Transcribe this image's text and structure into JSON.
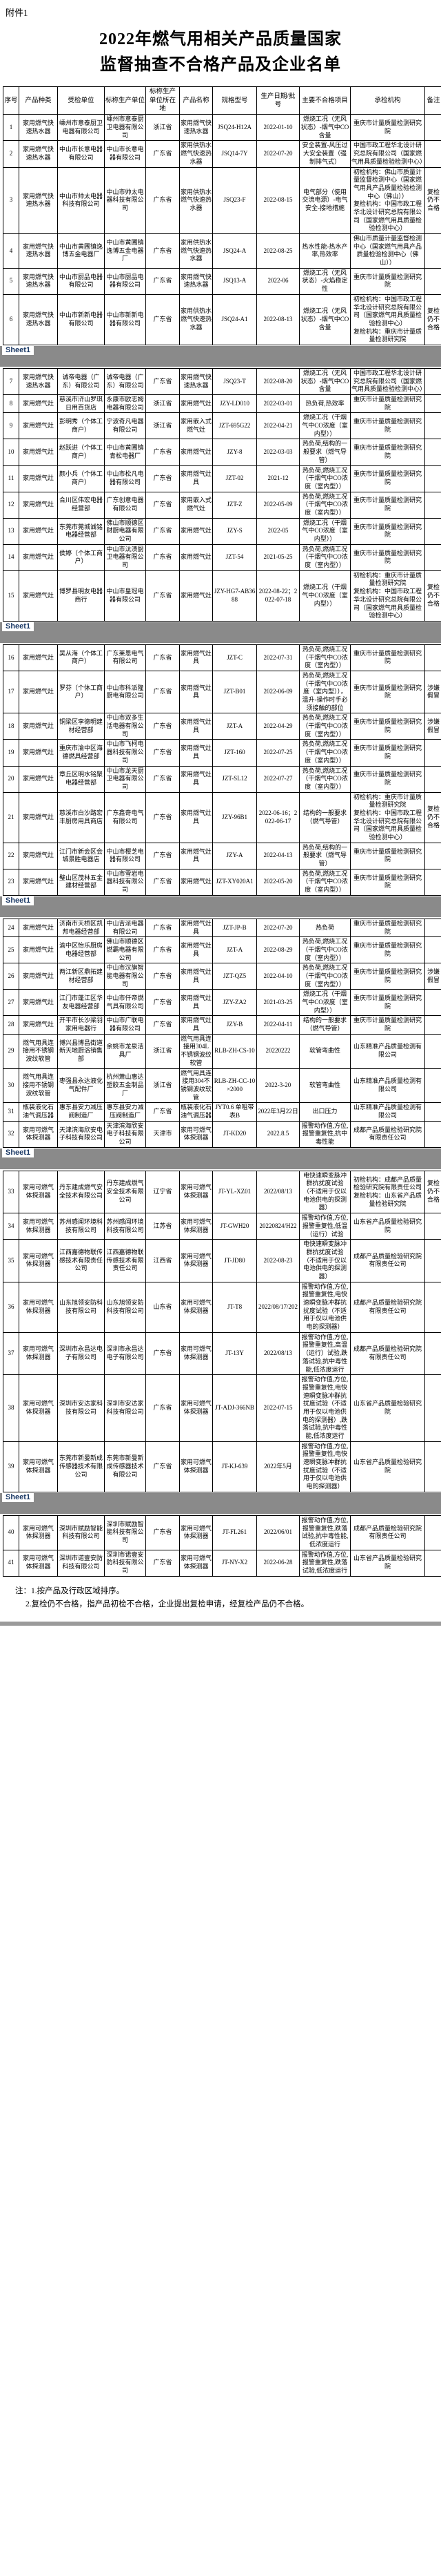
{
  "doc": {
    "attachment": "附件1",
    "title_line1": "2022年燃气用相关产品质量国家",
    "title_line2": "监督抽查不合格产品及企业名单",
    "sheet_tab": "Sheet1",
    "note1": "注：1.按产品及行政区域排序。",
    "note2": "2.复检仍不合格，指产品初检不合格，企业提出复检申请，经复检产品仍不合格。"
  },
  "table": {
    "columns": [
      "序号",
      "产品种类",
      "受检单位",
      "标称生产单位",
      "标称生产单位所在地",
      "产品名称",
      "规格型号",
      "生产日期/批号",
      "主要不合格项目",
      "承检机构",
      "备注"
    ],
    "sheet_breaks_after": [
      6,
      15,
      23,
      32,
      39
    ],
    "rows": [
      {
        "no": "1",
        "category": "家用燃气快速热水器",
        "inspected_unit": "嵊州市意泰厨卫电器有限公司",
        "producer": "嵊州市意泰厨卫电器有限公司",
        "region": "浙江省",
        "product_name": "家用燃气快速热水器",
        "model": "JSQ24-H12A",
        "batch": "2022-01-10",
        "defects": "燃烧工况（无风状态）-烟气中CO含量",
        "agency": "重庆市计量质量检测研究院",
        "remark": ""
      },
      {
        "no": "2",
        "category": "家用燃气快速热水器",
        "inspected_unit": "中山市长意电器有限公司",
        "producer": "中山市长意电器有限公司",
        "region": "广东省",
        "product_name": "家用供热水燃气快速热水器",
        "model": "JSQ14-7Y",
        "batch": "2022-07-20",
        "defects": "安全装置-风压过大安全装置（强制排气式）",
        "agency": "中国市政工程华北设计研究总院有限公司（国家燃气用具质量检验检测中心）",
        "remark": ""
      },
      {
        "no": "3",
        "category": "家用燃气快速热水器",
        "inspected_unit": "中山市帅太电器科技有限公司",
        "producer": "中山市帅太电器科技有限公司",
        "region": "广东省",
        "product_name": "家用供热水燃气快速热水器",
        "model": "JSQ23-F",
        "batch": "2022-08-15",
        "defects": "电气部分（使用交流电源）-电气安全-接地措施",
        "agency": "初检机构：佛山市质量计量监督检测中心（国家燃气用具产品质量检验检测中心（佛山））\n复检机构：中国市政工程华北设计研究总院有限公司（国家燃气用具质量检验检测中心）",
        "remark": "复检仍不合格"
      },
      {
        "no": "4",
        "category": "家用燃气快速热水器",
        "inspected_unit": "中山市黄圃镇逸博五金电器厂",
        "producer": "中山市黄圃镇逸博五金电器厂",
        "region": "广东省",
        "product_name": "家用供热水燃气快速热水器",
        "model": "JSQ24-A",
        "batch": "2022-08-25",
        "defects": "热水性能-热水产率,热效率",
        "agency": "佛山市质量计量监督检测中心（国家燃气用具产品质量检验检测中心（佛山））",
        "remark": ""
      },
      {
        "no": "5",
        "category": "家用燃气快速热水器",
        "inspected_unit": "中山市厨品电器有限公司",
        "producer": "中山市厨品电器有限公司",
        "region": "广东省",
        "product_name": "家用燃气快速热水器",
        "model": "JSQ13-A",
        "batch": "2022-06",
        "defects": "燃烧工况（无风状态）-火焰稳定性",
        "agency": "重庆市计量质量检测研究院",
        "remark": ""
      },
      {
        "no": "6",
        "category": "家用燃气快速热水器",
        "inspected_unit": "中山市新新电器有限公司",
        "producer": "中山市新新电器有限公司",
        "region": "广东省",
        "product_name": "家用供热水燃气快速热水器",
        "model": "JSQ24-A1",
        "batch": "2022-08-13",
        "defects": "燃烧工况（无风状态）-烟气中CO含量",
        "agency": "初检机构：中国市政工程华北设计研究总院有限公司（国家燃气用具质量检验检测中心）\n复检机构：重庆市计量质量检测研究院",
        "remark": "复检仍不合格"
      },
      {
        "no": "7",
        "category": "家用燃气快速热水器",
        "inspected_unit": "诚帝电器（广东）有限公司",
        "producer": "诚帝电器（广东）有限公司",
        "region": "广东省",
        "product_name": "家用燃气快速热水器",
        "model": "JSQ23-T",
        "batch": "2022-08-20",
        "defects": "燃烧工况（无风状态）-烟气中CO含量",
        "agency": "中国市政工程华北设计研究总院有限公司（国家燃气用具质量检验检测中心）",
        "remark": ""
      },
      {
        "no": "8",
        "category": "家用燃气灶",
        "inspected_unit": "慈溪市浒山罗琪日用百货店",
        "producer": "永康市欧志姆电器有限公司",
        "region": "浙江省",
        "product_name": "家用燃气灶",
        "model": "JZY-LD010",
        "batch": "2022-03-01",
        "defects": "热负荷,热效率",
        "agency": "重庆市计量质量检测研究院",
        "remark": ""
      },
      {
        "no": "9",
        "category": "家用燃气灶",
        "inspected_unit": "彭明秀（个体工商户）",
        "producer": "宁波奇凡电器有限公司",
        "region": "浙江省",
        "product_name": "家用嵌入式燃气灶",
        "model": "JZT-695G22",
        "batch": "2022-04-21",
        "defects": "燃烧工况（干烟气中CO浓度（室内型））",
        "agency": "重庆市计量质量检测研究院",
        "remark": ""
      },
      {
        "no": "10",
        "category": "家用燃气灶",
        "inspected_unit": "赵跃进（个体工商户）",
        "producer": "中山市黄圃镇青松电器厂",
        "region": "广东省",
        "product_name": "家用燃气灶",
        "model": "JZY-8",
        "batch": "2022-03-03",
        "defects": "热负荷,结构的一般要求（燃气导管）",
        "agency": "重庆市计量质量检测研究院",
        "remark": ""
      },
      {
        "no": "11",
        "category": "家用燃气灶",
        "inspected_unit": "颜小兵（个体工商户）",
        "producer": "中山市松凡电器有限公司",
        "region": "广东省",
        "product_name": "家用燃气灶具",
        "model": "JZT-02",
        "batch": "2021-12",
        "defects": "热负荷,燃烧工况（干烟气中CO浓度（室内型））",
        "agency": "重庆市计量质量检测研究院",
        "remark": ""
      },
      {
        "no": "12",
        "category": "家用燃气灶",
        "inspected_unit": "合川区伟宏电器经营部",
        "producer": "广东创意电器有限公司",
        "region": "广东省",
        "product_name": "家用嵌入式燃气灶",
        "model": "JZT-Z",
        "batch": "2022-05-09",
        "defects": "热负荷,燃烧工况（干烟气中CO浓度（室内型））",
        "agency": "重庆市计量质量检测研究院",
        "remark": ""
      },
      {
        "no": "13",
        "category": "家用燃气灶",
        "inspected_unit": "东莞市莞城诚铭电器经营部",
        "producer": "佛山市顺德区财厨电器有限公司",
        "region": "广东省",
        "product_name": "家用燃气灶",
        "model": "JZY-S",
        "batch": "2022-05",
        "defects": "燃烧工况（干烟气中CO浓度（室内型））",
        "agency": "重庆市计量质量检测研究院",
        "remark": ""
      },
      {
        "no": "14",
        "category": "家用燃气灶",
        "inspected_unit": "侯婷（个体工商户）",
        "producer": "中山市汰渍厨卫电器有限公司",
        "region": "广东省",
        "product_name": "家用燃气灶",
        "model": "JZT-54",
        "batch": "2021-05-25",
        "defects": "热负荷,燃烧工况（干烟气中CO浓度（室内型））",
        "agency": "重庆市计量质量检测研究院",
        "remark": ""
      },
      {
        "no": "15",
        "category": "家用燃气灶",
        "inspected_unit": "博罗县明友电器商行",
        "producer": "中山市皇冠电器有限公司",
        "region": "广东省",
        "product_name": "家用燃气灶",
        "model": "JZY-HG7-AB3688",
        "batch": "2022-08-22；2022-07-18",
        "defects": "燃烧工况（干烟气中CO浓度（室内型））",
        "agency": "初检机构：重庆市计量质量检测研究院\n复检机构：中国市政工程华北设计研究总院有限公司（国家燃气用具质量检验检测中心）",
        "remark": "复检仍不合格"
      },
      {
        "no": "16",
        "category": "家用燃气灶",
        "inspected_unit": "吴从海（个体工商户）",
        "producer": "广东莱恩电气有限公司",
        "region": "广东省",
        "product_name": "家用燃气灶具",
        "model": "JZT-C",
        "batch": "2022-07-31",
        "defects": "热负荷,燃烧工况（干烟气中CO浓度（室内型））",
        "agency": "重庆市计量质量检测研究院",
        "remark": ""
      },
      {
        "no": "17",
        "category": "家用燃气灶",
        "inspected_unit": "罗芬（个体工商户）",
        "producer": "中山市科派隆厨电有限公司",
        "region": "广东省",
        "product_name": "家用燃气灶具",
        "model": "JZT-B01",
        "batch": "2022-06-09",
        "defects": "热负荷,燃烧工况（干烟气中CO浓度（室内型）），温升-操作时手必须接触的部位",
        "agency": "重庆市计量质量检测研究院",
        "remark": "涉嫌假冒"
      },
      {
        "no": "18",
        "category": "家用燃气灶",
        "inspected_unit": "铜梁区李德明建材经营部",
        "producer": "中山市双多生活电器有限公司",
        "region": "广东省",
        "product_name": "家用燃气灶具",
        "model": "JZT-A",
        "batch": "2022-04-29",
        "defects": "热负荷,燃烧工况（干烟气中CO浓度（室内型））",
        "agency": "重庆市计量质量检测研究院",
        "remark": "涉嫌假冒"
      },
      {
        "no": "19",
        "category": "家用燃气灶",
        "inspected_unit": "重庆市渝中区海德燃具经营部",
        "producer": "中山市飞柯电器科技有限公司",
        "region": "广东省",
        "product_name": "家用燃气灶具",
        "model": "JZT-160",
        "batch": "2022-07-25",
        "defects": "热负荷,燃烧工况（干烟气中CO浓度（室内型））",
        "agency": "重庆市计量质量检测研究院",
        "remark": ""
      },
      {
        "no": "20",
        "category": "家用燃气灶",
        "inspected_unit": "章丘区明水铭聚电器经营部",
        "producer": "中山市龙天厨卫电器有限公司",
        "region": "广东省",
        "product_name": "家用燃气灶具",
        "model": "JZT-SL12",
        "batch": "2022-07-27",
        "defects": "热负荷,燃烧工况（干烟气中CO浓度（室内型））",
        "agency": "重庆市计量质量检测研究院",
        "remark": ""
      },
      {
        "no": "21",
        "category": "家用燃气灶",
        "inspected_unit": "慈溪市白沙路宏丰厨房用具商店",
        "producer": "广东鑫奇电气有限公司",
        "region": "广东省",
        "product_name": "家用燃气灶具",
        "model": "JZY-96B1",
        "batch": "2022-06-16；2022-06-17",
        "defects": "结构的一般要求（燃气导管）",
        "agency": "初检机构：重庆市计量质量检测研究院\n复检机构：中国市政工程华北设计研究总院有限公司（国家燃气用具质量检验检测中心）",
        "remark": "复检仍不合格"
      },
      {
        "no": "22",
        "category": "家用燃气灶",
        "inspected_unit": "江门市新会区会城景胜电器店",
        "producer": "中山市樱芝电器有限公司",
        "region": "广东省",
        "product_name": "家用燃气灶具",
        "model": "JZY-A",
        "batch": "2022-04-13",
        "defects": "热负荷,结构的一般要求（燃气导管）",
        "agency": "重庆市计量质量检测研究院",
        "remark": ""
      },
      {
        "no": "23",
        "category": "家用燃气灶",
        "inspected_unit": "璧山区茂林五金建材经营部",
        "producer": "中山市雪岩电器科技有限公司",
        "region": "广东省",
        "product_name": "家用燃气灶",
        "model": "JZT-XY020A1",
        "batch": "2022-05-20",
        "defects": "热负荷,燃烧工况（干烟气中CO浓度（室内型））",
        "agency": "重庆市计量质量检测研究院",
        "remark": ""
      },
      {
        "no": "24",
        "category": "家用燃气灶",
        "inspected_unit": "济南市天桥区凯邦电器经营部",
        "producer": "中山吉派电器有限公司",
        "region": "广东省",
        "product_name": "家用燃气灶具",
        "model": "JZT-JP-B",
        "batch": "2022-07-20",
        "defects": "热负荷",
        "agency": "重庆市计量质量检测研究院",
        "remark": ""
      },
      {
        "no": "25",
        "category": "家用燃气灶",
        "inspected_unit": "渝中区怡乐厨房电器经营部",
        "producer": "佛山市顺德区燃霸电器有限公司",
        "region": "广东省",
        "product_name": "家用燃气灶具",
        "model": "JZT-A",
        "batch": "2022-08-29",
        "defects": "热负荷,燃烧工况（干烟气中CO浓度（室内型））",
        "agency": "重庆市计量质量检测研究院",
        "remark": ""
      },
      {
        "no": "26",
        "category": "家用燃气灶",
        "inspected_unit": "两江新区鼎拓建材经营部",
        "producer": "中山市汉旗智能电器有限公司",
        "region": "广东省",
        "product_name": "家用燃气灶具",
        "model": "JZT-QZ5",
        "batch": "2022-04-10",
        "defects": "热负荷,燃烧工况（干烟气中CO浓度（室内型））",
        "agency": "重庆市计量质量检测研究院",
        "remark": "涉嫌假冒"
      },
      {
        "no": "27",
        "category": "家用燃气灶",
        "inspected_unit": "江门市蓬江区华友电器经营部",
        "producer": "中山市仟帝燃气具有限公司",
        "region": "广东省",
        "product_name": "家用燃气灶具",
        "model": "JZY-ZA2",
        "batch": "2021-03-25",
        "defects": "燃烧工况（干烟气中CO浓度（室内型））",
        "agency": "重庆市计量质量检测研究院",
        "remark": ""
      },
      {
        "no": "28",
        "category": "家用燃气灶",
        "inspected_unit": "开平市长沙梁羽家用电器行",
        "producer": "中山市广联电器有限公司",
        "region": "广东省",
        "product_name": "家用燃气灶具",
        "model": "JZY-B",
        "batch": "2022-04-11",
        "defects": "结构的一般要求（燃气导管）",
        "agency": "重庆市计量质量检测研究院",
        "remark": ""
      },
      {
        "no": "29",
        "category": "燃气用具连接用不锈钢波纹软管",
        "inspected_unit": "博兴县博昌街道新天地厨浴销售部",
        "producer": "余姚市龙泉洁具厂",
        "region": "浙江省",
        "product_name": "燃气用具连接用304L不锈钢波纹软管",
        "model": "RLB-ZH-CS-10",
        "batch": "20220222",
        "defects": "软管弯曲性",
        "agency": "山东精准产品质量检测有限公司",
        "remark": ""
      },
      {
        "no": "30",
        "category": "燃气用具连接用不锈钢波纹软管",
        "inspected_unit": "枣强县永达液化气配件厂",
        "producer": "杭州萧山惠达塑胶五金制品厂",
        "region": "浙江省",
        "product_name": "燃气用具连接用304不锈钢波纹软管",
        "model": "RLB-ZH-CC-10×2000",
        "batch": "2022-3-20",
        "defects": "软管弯曲性",
        "agency": "山东精准产品质量检测有限公司",
        "remark": ""
      },
      {
        "no": "31",
        "category": "瓶装液化石油气调压器",
        "inspected_unit": "惠东县安力减压阀制造厂",
        "producer": "惠东县安力减压阀制造厂",
        "region": "广东省",
        "product_name": "瓶装液化石油气调压器",
        "model": "JYT0.6 单咀带表B",
        "batch": "2022年3月22日",
        "defects": "出口压力",
        "agency": "山东精准产品质量检测有限公司",
        "remark": ""
      },
      {
        "no": "32",
        "category": "家用可燃气体探测器",
        "inspected_unit": "天津滨海欣安电子科技有限公司",
        "producer": "天津滨海欣安电子科技有限公司",
        "region": "天津市",
        "product_name": "家用可燃气体探测器",
        "model": "JT-KD20",
        "batch": "2022.8.5",
        "defects": "报警动作值,方位,报警重复性,抗中毒性能",
        "agency": "成都产品质量检验研究院有限责任公司",
        "remark": ""
      },
      {
        "no": "33",
        "category": "家用可燃气体探测器",
        "inspected_unit": "丹东建成燃气安全技术有限公司",
        "producer": "丹东建成燃气安全技术有限公司",
        "region": "辽宁省",
        "product_name": "家用可燃气体探测器",
        "model": "JT-YL-XZ01",
        "batch": "2022/08/13",
        "defects": "电快速瞬变脉冲群抗扰度试验（不适用于仅以电池供电的探测器）",
        "agency": "初检机构：成都产品质量检验研究院有限责任公司\n复检机构：山东省产品质量检验研究院",
        "remark": "复检仍不合格"
      },
      {
        "no": "34",
        "category": "家用可燃气体探测器",
        "inspected_unit": "苏州感闻环境科技有限公司",
        "producer": "苏州感闻环境科技有限公司",
        "region": "江苏省",
        "product_name": "家用可燃气体探测器",
        "model": "JT-GWH20",
        "batch": "20220824/H22",
        "defects": "报警动作值,方位,报警重复性,低温（运行）试验",
        "agency": "山东省产品质量检验研究院",
        "remark": ""
      },
      {
        "no": "35",
        "category": "家用可燃气体探测器",
        "inspected_unit": "江西嘉德物联传感技术有限责任公司",
        "producer": "江西嘉德物联传感技术有限责任公司",
        "region": "江西省",
        "product_name": "家用可燃气体探测器",
        "model": "JT-JD80",
        "batch": "2022-08-23",
        "defects": "电快速瞬变脉冲群抗扰度试验（不适用于仅以电池供电的探测器）",
        "agency": "成都产品质量检验研究院有限责任公司",
        "remark": ""
      },
      {
        "no": "36",
        "category": "家用可燃气体探测器",
        "inspected_unit": "山东旭领安防科技有限公司",
        "producer": "山东旭领安防科技有限公司",
        "region": "山东省",
        "product_name": "家用可燃气体探测器",
        "model": "JT-T8",
        "batch": "2022/08/17/202",
        "defects": "报警动作值,方位,报警重复性,电快速瞬变脉冲群抗扰度试验（不适用于仅以电池供电的探测器）",
        "agency": "成都产品质量检验研究院有限责任公司",
        "remark": ""
      },
      {
        "no": "37",
        "category": "家用可燃气体探测器",
        "inspected_unit": "深圳市永昌达电子有限公司",
        "producer": "深圳市永昌达电子有限公司",
        "region": "广东省",
        "product_name": "家用可燃气体探测器",
        "model": "JT-13Y",
        "batch": "2022/08/13",
        "defects": "报警动作值,方位,报警重复性,高温（运行）试验,跌落试验,抗中毒性能,低浓度运行",
        "agency": "成都产品质量检验研究院有限责任公司",
        "remark": ""
      },
      {
        "no": "38",
        "category": "家用可燃气体探测器",
        "inspected_unit": "深圳市安达家科技有限公司",
        "producer": "深圳市安达家科技有限公司",
        "region": "广东省",
        "product_name": "家用可燃气体探测器",
        "model": "JT-ADJ-366NB",
        "batch": "2022-07-15",
        "defects": "报警动作值,方位,报警重复性,电快速瞬变脉冲群抗扰度试验（不适用于仅以电池供电的探测器）,跌落试验,抗中毒性能,低浓度运行",
        "agency": "山东省产品质量检验研究院",
        "remark": ""
      },
      {
        "no": "39",
        "category": "家用可燃气体探测器",
        "inspected_unit": "东莞市新曼新成传感器技术有限公司",
        "producer": "东莞市新曼新成传感器技术有限公司",
        "region": "广东省",
        "product_name": "家用可燃气体探测器",
        "model": "JT-KJ-639",
        "batch": "2022年5月",
        "defects": "报警动作值,方位,报警重复性,电快速瞬变脉冲群抗扰度试验（不适用于仅以电池供电的探测器）",
        "agency": "山东省产品质量检验研究院",
        "remark": ""
      },
      {
        "no": "40",
        "category": "家用可燃气体探测器",
        "inspected_unit": "深圳市赋励智能科技有限公司",
        "producer": "深圳市赋励智能科技有限公司",
        "region": "广东省",
        "product_name": "家用可燃气体探测器",
        "model": "JT-FL261",
        "batch": "2022/06/01",
        "defects": "报警动作值,方位,报警重复性,跌落试验,抗中毒性能,低浓度运行",
        "agency": "成都产品质量检验研究院有限责任公司",
        "remark": ""
      },
      {
        "no": "41",
        "category": "家用可燃气体探测器",
        "inspected_unit": "深圳市诺壹安防科技有限公司",
        "producer": "深圳市诺壹安防科技有限公司",
        "region": "广东省",
        "product_name": "家用可燃气体探测器",
        "model": "JT-NY-X2",
        "batch": "2022-06-28",
        "defects": "报警动作值,方位,报警重复性,跌落试验,低浓度运行",
        "agency": "山东省产品质量检验研究院",
        "remark": ""
      }
    ]
  }
}
